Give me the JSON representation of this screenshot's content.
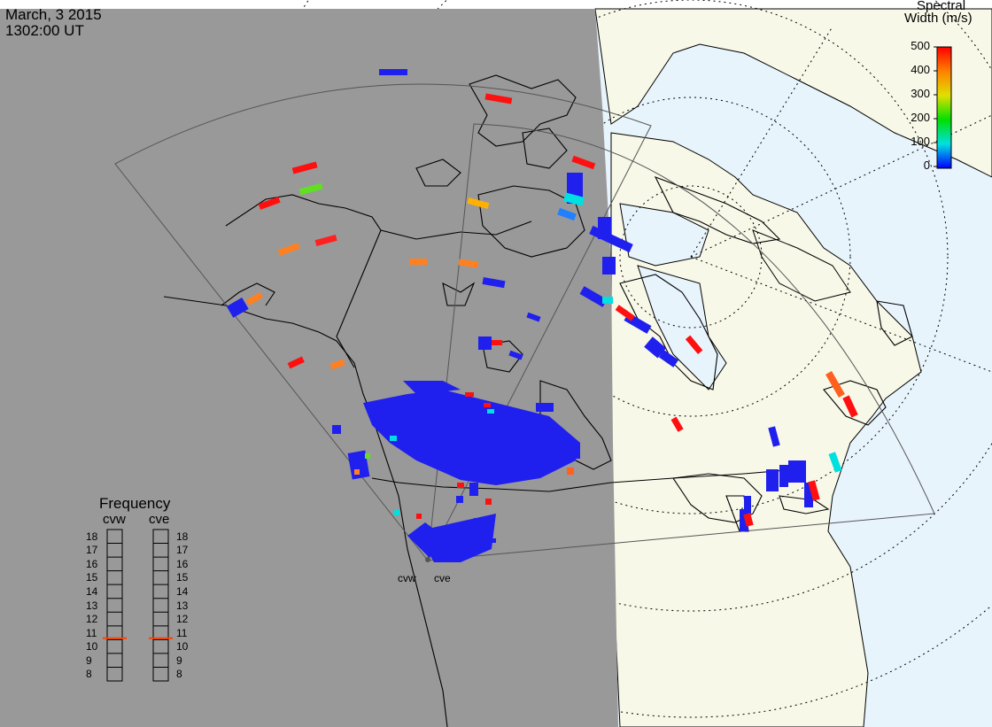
{
  "header": {
    "date": "March, 3 2015",
    "time": "1302:00 UT"
  },
  "colorbar": {
    "title_line1": "Spectral",
    "title_line2": "Width (m/s)",
    "ticks": [
      "500",
      "400",
      "300",
      "200",
      "100",
      "0"
    ],
    "colors": [
      "#ff0000",
      "#ff8000",
      "#ffff00",
      "#00ff00",
      "#00ffff",
      "#0000ff"
    ]
  },
  "frequency_panel": {
    "title": "Frequency",
    "radars": [
      {
        "code": "cvw",
        "current_mhz": 10.6
      },
      {
        "code": "cve",
        "current_mhz": 10.6
      }
    ],
    "scale_labels": [
      "18",
      "17",
      "16",
      "15",
      "14",
      "13",
      "12",
      "11",
      "10",
      "9",
      "8"
    ],
    "marker_color": "#ff4000"
  },
  "radar_sites": {
    "west_label": "cvw",
    "east_label": "cve"
  },
  "colors": {
    "night": "#999999",
    "day_land": "#f8f8e8",
    "day_ocean": "#e8f4fc"
  }
}
